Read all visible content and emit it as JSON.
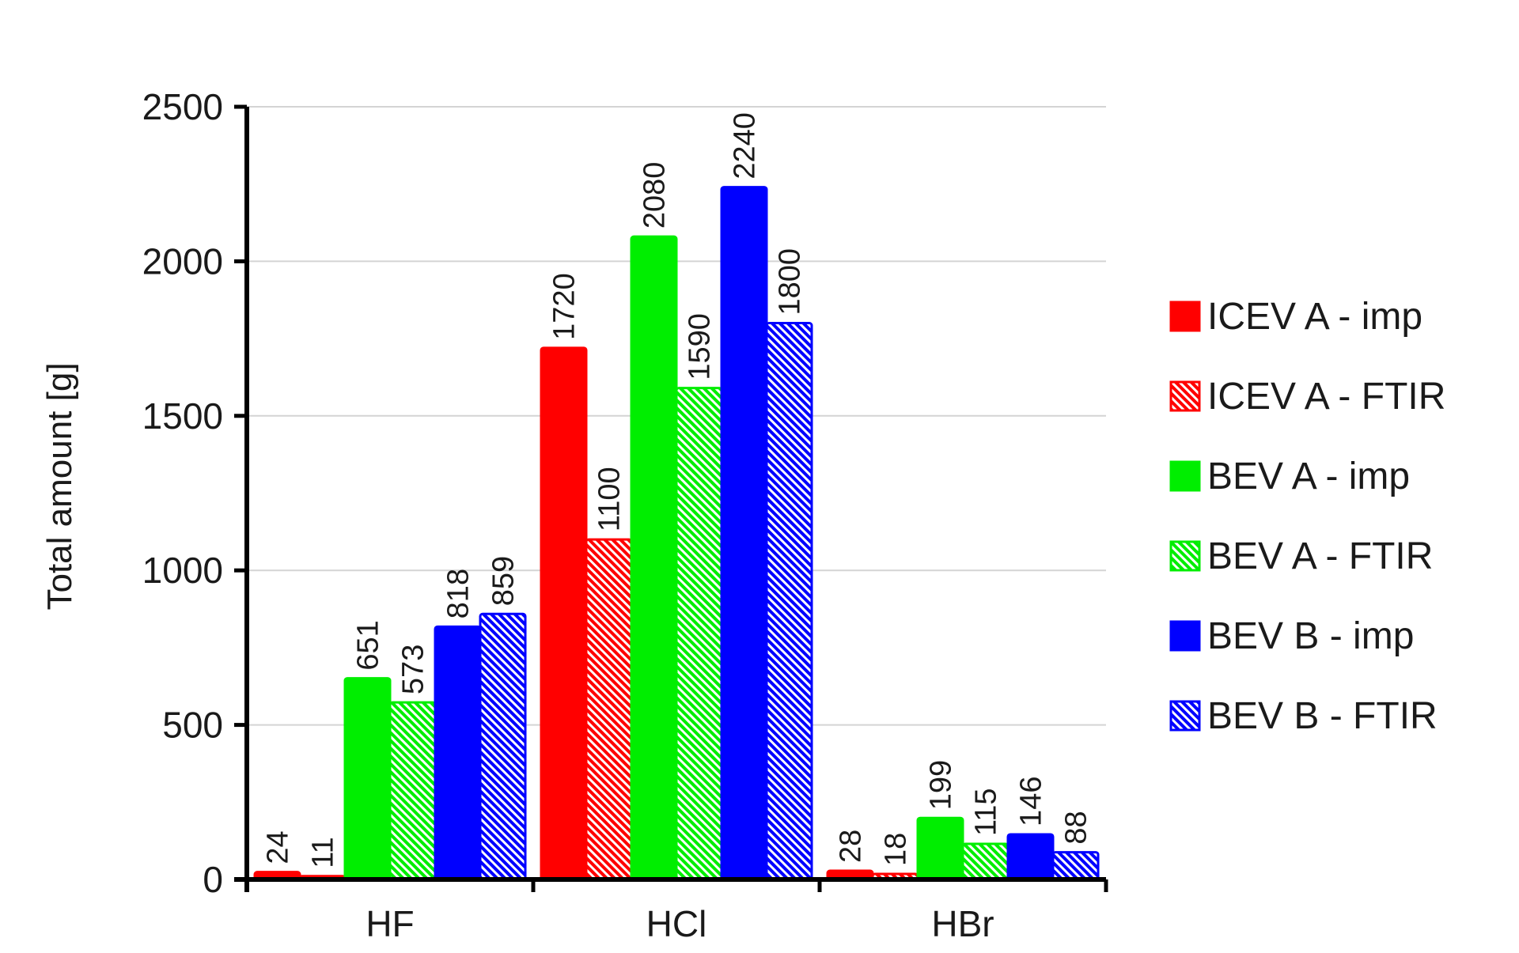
{
  "chart_data": {
    "type": "bar",
    "title": "",
    "xlabel": "",
    "ylabel": "Total amount [g]",
    "ylim": [
      0,
      2500
    ],
    "yticks": [
      0,
      500,
      1000,
      1500,
      2000,
      2500
    ],
    "grid": true,
    "legend_position": "right",
    "categories": [
      "HF",
      "HCl",
      "HBr"
    ],
    "series": [
      {
        "name": "ICEV A - imp",
        "color": "#ff0000",
        "pattern": "solid",
        "values": [
          24,
          1720,
          28
        ]
      },
      {
        "name": "ICEV A - FTIR",
        "color": "#ff0000",
        "pattern": "hatched",
        "values": [
          11,
          1100,
          18
        ]
      },
      {
        "name": "BEV A - imp",
        "color": "#00ee00",
        "pattern": "solid",
        "values": [
          651,
          2080,
          199
        ]
      },
      {
        "name": "BEV A - FTIR",
        "color": "#00ee00",
        "pattern": "hatched",
        "values": [
          573,
          1590,
          115
        ]
      },
      {
        "name": "BEV B - imp",
        "color": "#0000ff",
        "pattern": "solid",
        "values": [
          818,
          2240,
          146
        ]
      },
      {
        "name": "BEV B - FTIR",
        "color": "#0000ff",
        "pattern": "hatched",
        "values": [
          859,
          1800,
          88
        ]
      }
    ]
  }
}
